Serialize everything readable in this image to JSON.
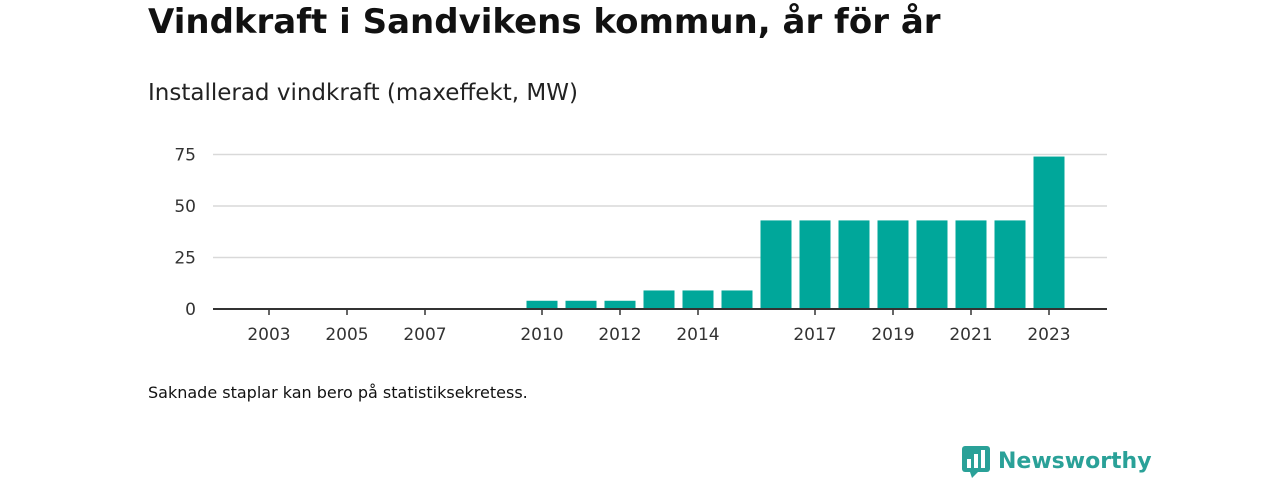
{
  "header": {
    "title": "Vindkraft i Sandvikens kommun, år för år",
    "subtitle": "Installerad vindkraft (maxeffekt, MW)"
  },
  "footnote": "Saknade staplar kan bero på statistiksekretess.",
  "brand": {
    "name": "Newsworthy",
    "color": "#2aa198",
    "icon": "newsworthy-logo-icon"
  },
  "colors": {
    "bar": "#00a79a",
    "grid": "#d9d9d9",
    "axis": "#333333"
  },
  "chart_data": {
    "type": "bar",
    "title": "Installerad vindkraft (maxeffekt, MW)",
    "xlabel": "",
    "ylabel": "",
    "categories": [
      2002,
      2003,
      2004,
      2005,
      2006,
      2007,
      2008,
      2009,
      2010,
      2011,
      2012,
      2013,
      2014,
      2015,
      2016,
      2017,
      2018,
      2019,
      2020,
      2021,
      2022,
      2023
    ],
    "values": [
      0,
      0,
      0,
      0,
      0,
      0,
      0,
      0,
      4,
      4,
      4,
      9,
      9,
      9,
      43,
      43,
      43,
      43,
      43,
      43,
      43,
      74
    ],
    "x_tick_labels": [
      "2003",
      "2005",
      "2007",
      "2010",
      "2012",
      "2014",
      "2017",
      "2019",
      "2021",
      "2023"
    ],
    "y_ticks": [
      0,
      25,
      50,
      75
    ],
    "ylim": [
      0,
      80
    ],
    "grid": true,
    "legend": "none"
  }
}
